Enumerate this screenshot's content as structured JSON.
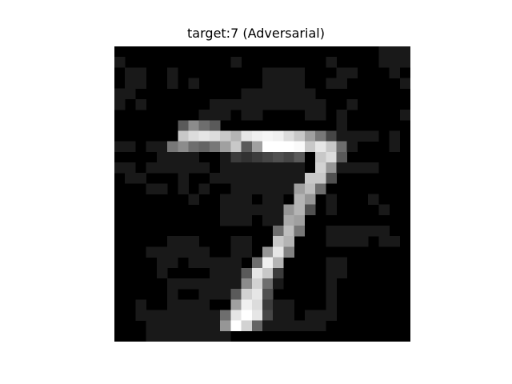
{
  "figure": {
    "title": "target:7 (Adversarial)"
  },
  "image": {
    "kind": "grayscale-pixel-grid",
    "rows": 28,
    "cols": 28,
    "colormap": "gray",
    "subject": "handwritten digit seven with adversarial noise"
  },
  "colors": {
    "background": "#ffffff",
    "title": "#000000"
  }
}
